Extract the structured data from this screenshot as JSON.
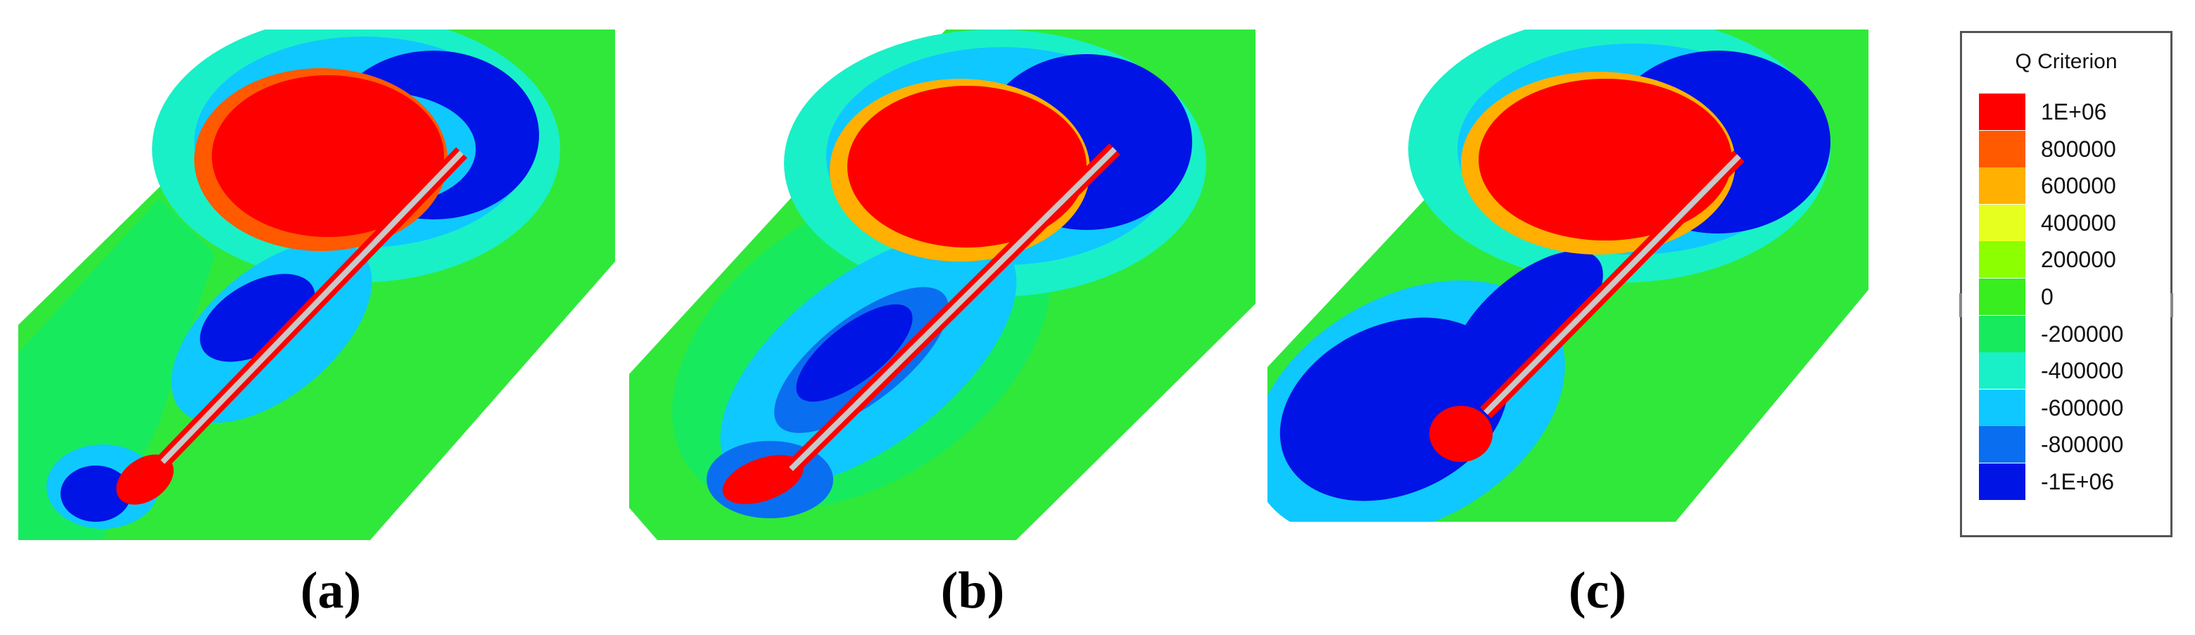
{
  "panels": [
    {
      "caption": "(a)"
    },
    {
      "caption": "(b)"
    },
    {
      "caption": "(c)"
    }
  ],
  "legend": {
    "title": "Q Criterion",
    "entries": [
      {
        "label": "1E+06",
        "color": "#ff0000"
      },
      {
        "label": "800000",
        "color": "#ff5a00"
      },
      {
        "label": "600000",
        "color": "#ffb000"
      },
      {
        "label": "400000",
        "color": "#e6ff1e"
      },
      {
        "label": "200000",
        "color": "#8cff00"
      },
      {
        "label": "0",
        "color": "#38ee1e"
      },
      {
        "label": "-200000",
        "color": "#18ea5e"
      },
      {
        "label": "-400000",
        "color": "#19f0c8"
      },
      {
        "label": "-600000",
        "color": "#0fc8ff"
      },
      {
        "label": "-800000",
        "color": "#0a6ef0"
      },
      {
        "label": "-1E+06",
        "color": "#0014e6"
      }
    ]
  }
}
